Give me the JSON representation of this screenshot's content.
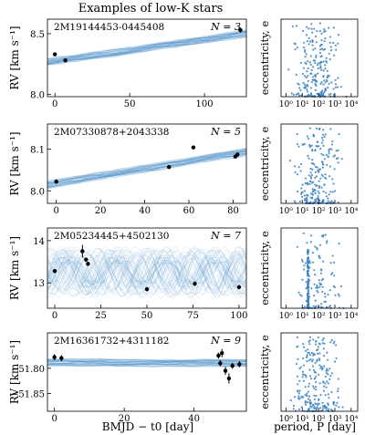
{
  "figure": {
    "title": "Examples of low-K stars",
    "bottom_xlabel_rv": "BMJD − t0 [day]",
    "bottom_xlabel_hist": "period, P [day]",
    "rv_ylabel": "RV [km s⁻¹]",
    "ecc_ylabel": "eccentricity, e"
  },
  "colors": {
    "sample": "#4a90c8",
    "point": "#000000",
    "scatter": "#3b82c4"
  },
  "chart_data": [
    {
      "type": "scatter",
      "name_label": "2M19144453-0445408",
      "n_label": "N = 3",
      "xlim": [
        -5,
        128
      ],
      "ylim": [
        7.98,
        8.62
      ],
      "yticks": [
        8.0,
        8.5
      ],
      "ytick_labels": [
        "8.0",
        "8.5"
      ],
      "xticks": [
        0,
        50,
        100
      ],
      "xtick_labels": [
        "0",
        "50",
        "100"
      ],
      "points": [
        {
          "x": 0,
          "y": 8.33,
          "err": 0.015
        },
        {
          "x": 7,
          "y": 8.28,
          "err": 0.015
        },
        {
          "x": 124,
          "y": 8.53,
          "err": 0.02
        }
      ],
      "ecc": {
        "xlim_log": [
          -0.3,
          4.4
        ],
        "ylim": [
          0,
          0.82
        ],
        "xticks_log": [
          0,
          1,
          2,
          3,
          4
        ],
        "xtick_labels": [
          "10⁰",
          "10¹",
          "10²",
          "10³",
          "10⁴"
        ]
      }
    },
    {
      "type": "scatter",
      "name_label": "2M07330878+2043338",
      "n_label": "N = 5",
      "xlim": [
        -4,
        86
      ],
      "ylim": [
        7.97,
        8.16
      ],
      "yticks": [
        8.0,
        8.1
      ],
      "ytick_labels": [
        "8.0",
        "8.1"
      ],
      "xticks": [
        0,
        20,
        40,
        60,
        80
      ],
      "xtick_labels": [
        "0",
        "20",
        "40",
        "60",
        "80"
      ],
      "points": [
        {
          "x": 0,
          "y": 8.022,
          "err": 0.004
        },
        {
          "x": 51,
          "y": 8.057,
          "err": 0.003
        },
        {
          "x": 62,
          "y": 8.104,
          "err": 0.003
        },
        {
          "x": 81,
          "y": 8.082,
          "err": 0.003
        },
        {
          "x": 82,
          "y": 8.087,
          "err": 0.003
        }
      ],
      "ecc": {
        "xlim_log": [
          -0.3,
          4.4
        ],
        "ylim": [
          0,
          0.82
        ],
        "xticks_log": [
          0,
          1,
          2,
          3,
          4
        ],
        "xtick_labels": [
          "10⁰",
          "10¹",
          "10²",
          "10³",
          "10⁴"
        ]
      }
    },
    {
      "type": "scatter",
      "name_label": "2M05234445+4502130",
      "n_label": "N = 7",
      "xlim": [
        -4,
        104
      ],
      "ylim": [
        12.4,
        14.3
      ],
      "yticks": [
        13,
        14
      ],
      "ytick_labels": [
        "13",
        "14"
      ],
      "xticks": [
        0,
        25,
        50,
        75,
        100
      ],
      "xtick_labels": [
        "0",
        "25",
        "50",
        "75",
        "100"
      ],
      "points": [
        {
          "x": 0,
          "y": 13.28,
          "err": 0.05
        },
        {
          "x": 15,
          "y": 13.75,
          "err": 0.15
        },
        {
          "x": 17,
          "y": 13.55,
          "err": 0.05
        },
        {
          "x": 18,
          "y": 13.45,
          "err": 0.05
        },
        {
          "x": 50,
          "y": 12.85,
          "err": 0.05
        },
        {
          "x": 76,
          "y": 12.98,
          "err": 0.05
        },
        {
          "x": 100,
          "y": 12.9,
          "err": 0.05
        }
      ],
      "ecc": {
        "xlim_log": [
          -0.3,
          4.4
        ],
        "ylim": [
          0,
          0.82
        ],
        "xticks_log": [
          0,
          1,
          2,
          3,
          4
        ],
        "xtick_labels": [
          "10⁰",
          "10¹",
          "10²",
          "10³",
          "10⁴"
        ]
      }
    },
    {
      "type": "scatter",
      "name_label": "2M16361732+4311182",
      "n_label": "N = 9",
      "xlim": [
        -2,
        55
      ],
      "ylim": [
        -51.885,
        -51.73
      ],
      "yticks": [
        -51.8,
        -51.85
      ],
      "ytick_labels": [
        "−51.80",
        "−51.85"
      ],
      "xticks": [
        0,
        20,
        40
      ],
      "xtick_labels": [
        "0",
        "20",
        "40"
      ],
      "points": [
        {
          "x": 0,
          "y": -51.778,
          "err": 0.006
        },
        {
          "x": 2,
          "y": -51.78,
          "err": 0.006
        },
        {
          "x": 47,
          "y": -51.775,
          "err": 0.006
        },
        {
          "x": 47.5,
          "y": -51.79,
          "err": 0.006
        },
        {
          "x": 48,
          "y": -51.77,
          "err": 0.008
        },
        {
          "x": 49,
          "y": -51.805,
          "err": 0.008
        },
        {
          "x": 50,
          "y": -51.82,
          "err": 0.01
        },
        {
          "x": 51,
          "y": -51.795,
          "err": 0.006
        },
        {
          "x": 53,
          "y": -51.792,
          "err": 0.006
        }
      ],
      "ecc": {
        "xlim_log": [
          -0.3,
          4.4
        ],
        "ylim": [
          0,
          0.82
        ],
        "xticks_log": [
          0,
          1,
          2,
          3,
          4
        ],
        "xtick_labels": [
          "10⁰",
          "10¹",
          "10²",
          "10³",
          "10⁴"
        ]
      }
    }
  ]
}
